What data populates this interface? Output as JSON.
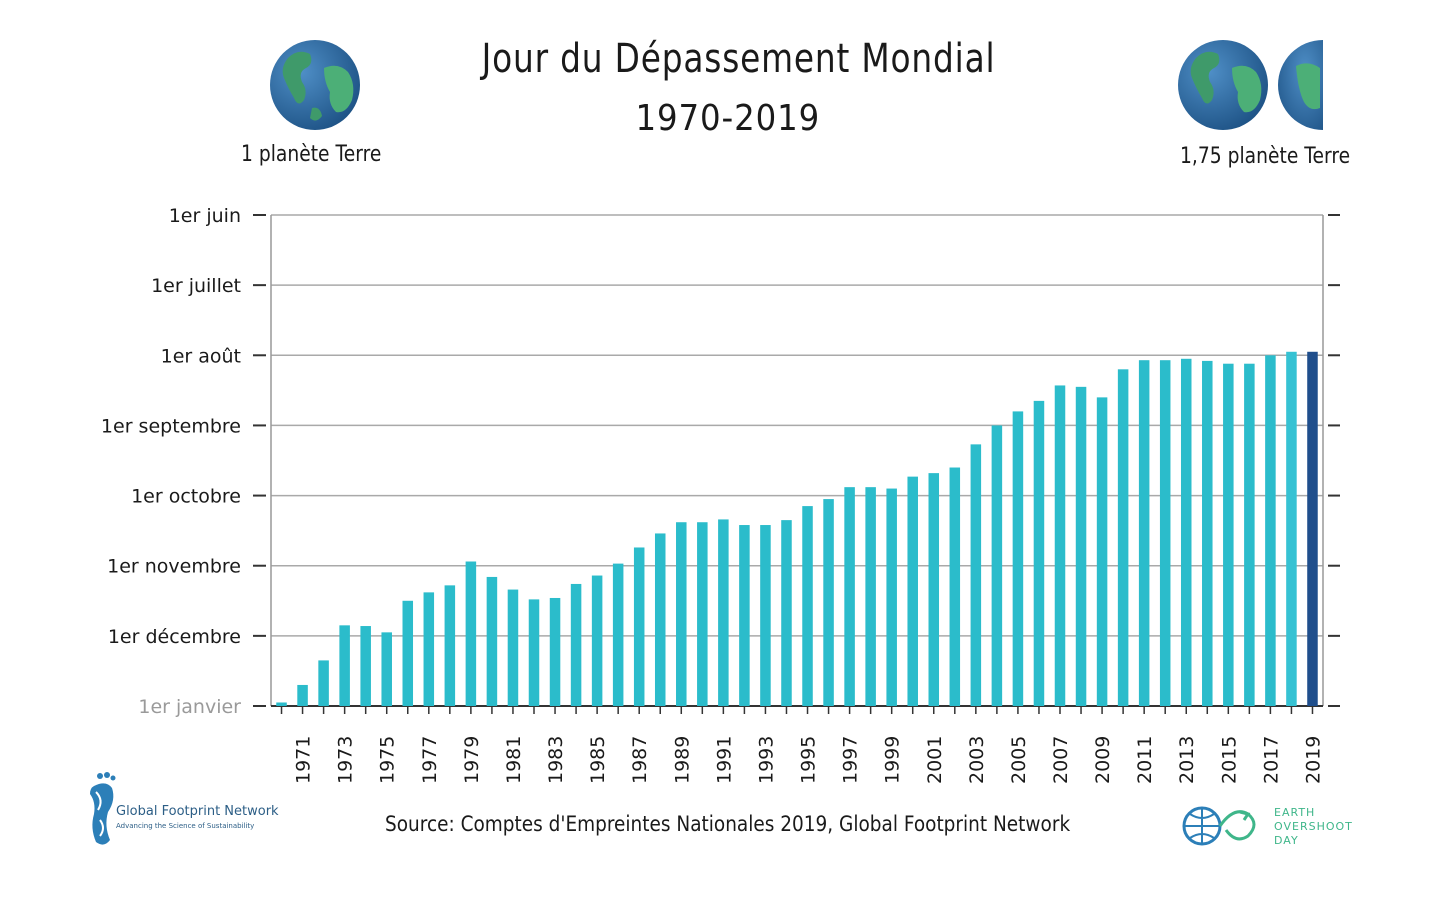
{
  "header": {
    "title": "Jour du Dépassement Mondial",
    "subtitle": "1970-2019"
  },
  "planets": {
    "left_label": "1 planète Terre",
    "right_label": "1,75 planète Terre",
    "left_icon": "globe-icon",
    "right_icon": "globe-icon"
  },
  "footer": {
    "source": "Source: Comptes d'Empreintes Nationales 2019, Global Footprint Network",
    "gfn_name": "Global Footprint Network",
    "gfn_tagline": "Advancing the Science of Sustainability",
    "eod_line1": "EARTH",
    "eod_line2": "OVERSHOOT",
    "eod_line3": "DAY"
  },
  "colors": {
    "bar": "#2bbccb",
    "bar_2018": "#36c2d3",
    "bar_2019": "#1f4e8c",
    "grid": "#a9a9a9",
    "frame": "#999999"
  },
  "chart_data": {
    "type": "bar",
    "title": "Jour du Dépassement Mondial",
    "subtitle": "1970-2019",
    "categories": [
      "1970",
      "1971",
      "1972",
      "1973",
      "1974",
      "1975",
      "1976",
      "1977",
      "1978",
      "1979",
      "1980",
      "1981",
      "1982",
      "1983",
      "1984",
      "1985",
      "1986",
      "1987",
      "1988",
      "1989",
      "1990",
      "1991",
      "1992",
      "1993",
      "1994",
      "1995",
      "1996",
      "1997",
      "1998",
      "1999",
      "2000",
      "2001",
      "2002",
      "2003",
      "2004",
      "2005",
      "2006",
      "2007",
      "2008",
      "2009",
      "2010",
      "2011",
      "2012",
      "2013",
      "2014",
      "2015",
      "2016",
      "2017",
      "2018",
      "2019"
    ],
    "x_tick_labels": [
      "1971",
      "1973",
      "1975",
      "1977",
      "1979",
      "1981",
      "1983",
      "1985",
      "1987",
      "1989",
      "1991",
      "1993",
      "1995",
      "1997",
      "1999",
      "2001",
      "2003",
      "2005",
      "2007",
      "2009",
      "2011",
      "2013",
      "2015",
      "2017",
      "2019"
    ],
    "y_ticks": [
      {
        "label": "1er janvier",
        "value": 0
      },
      {
        "label": "1er décembre",
        "value": 1
      },
      {
        "label": "1er novembre",
        "value": 2
      },
      {
        "label": "1er octobre",
        "value": 3
      },
      {
        "label": "1er septembre",
        "value": 4
      },
      {
        "label": "1er août",
        "value": 5
      },
      {
        "label": "1er juillet",
        "value": 6
      },
      {
        "label": "1er juin",
        "value": 7
      }
    ],
    "y_unit": "months before 1 January",
    "values": [
      0.05,
      0.3,
      0.65,
      1.15,
      1.14,
      1.05,
      1.5,
      1.62,
      1.72,
      2.06,
      1.84,
      1.66,
      1.52,
      1.54,
      1.74,
      1.86,
      2.03,
      2.26,
      2.46,
      2.62,
      2.62,
      2.66,
      2.58,
      2.58,
      2.65,
      2.85,
      2.95,
      3.12,
      3.12,
      3.1,
      3.27,
      3.32,
      3.4,
      3.73,
      4.0,
      4.2,
      4.35,
      4.57,
      4.55,
      4.4,
      4.8,
      4.93,
      4.93,
      4.95,
      4.92,
      4.88,
      4.88,
      5.0,
      5.05,
      5.05
    ],
    "ylim": [
      0,
      7
    ],
    "grid": true,
    "legend": "none"
  }
}
